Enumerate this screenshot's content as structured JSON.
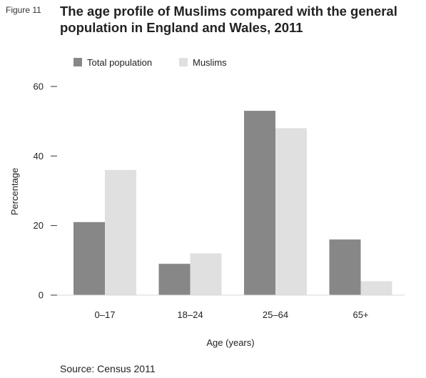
{
  "figure_label": "Figure 11",
  "title_lines": [
    "The age profile of Muslims compared with the general",
    "population in England and Wales, 2011"
  ],
  "source": "Source: Census 2011",
  "chart_data": {
    "type": "bar",
    "title": "The age profile of Muslims compared with the general population in England and Wales, 2011",
    "categories": [
      "0–17",
      "18–24",
      "25–64",
      "65+"
    ],
    "series": [
      {
        "name": "Total population",
        "values": [
          21,
          9,
          53,
          16
        ],
        "color": "#878787"
      },
      {
        "name": "Muslims",
        "values": [
          36,
          12,
          48,
          4
        ],
        "color": "#e0e0e0"
      }
    ],
    "xlabel": "Age (years)",
    "ylabel": "Percentage",
    "ylim": [
      0,
      60
    ],
    "yticks": [
      0,
      20,
      40,
      60
    ],
    "grid": false,
    "legend_position": "top-left"
  }
}
